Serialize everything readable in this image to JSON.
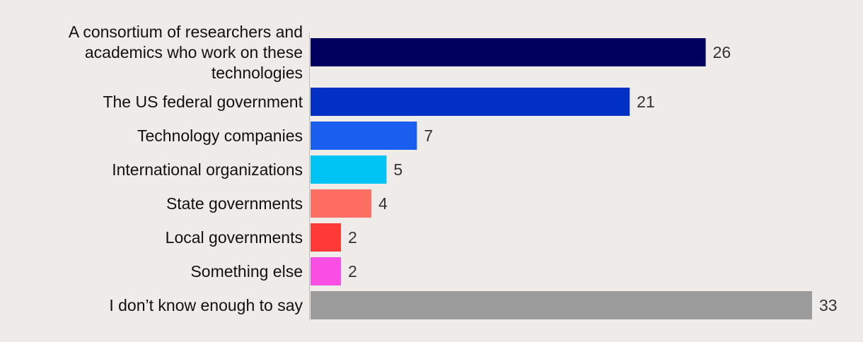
{
  "chart_data": {
    "type": "bar",
    "orientation": "horizontal",
    "title": "",
    "xlabel": "",
    "ylabel": "",
    "xlim": [
      0,
      33
    ],
    "grid": false,
    "legend": "none",
    "categories": [
      "A consortium of researchers and academics who work on these technologies",
      "The US federal government",
      "Technology companies",
      "International organizations",
      "State governments",
      "Local governments",
      "Something else",
      "I don’t know enough to say"
    ],
    "category_lines": [
      [
        "A consortium of researchers and",
        "academics who work on these",
        "technologies"
      ],
      [
        "The US federal government"
      ],
      [
        "Technology companies"
      ],
      [
        "International organizations"
      ],
      [
        "State governments"
      ],
      [
        "Local governments"
      ],
      [
        "Something else"
      ],
      [
        "I don’t know enough to say"
      ]
    ],
    "values": [
      26,
      21,
      7,
      5,
      4,
      2,
      2,
      33
    ],
    "value_labels": [
      "26",
      "21",
      "7",
      "5",
      "4",
      "2",
      "2",
      "33"
    ],
    "colors": [
      "#00005e",
      "#0230c4",
      "#1a5ef0",
      "#00c4f4",
      "#ff6e62",
      "#ff3a36",
      "#f84ee4",
      "#9b9b9b"
    ]
  }
}
